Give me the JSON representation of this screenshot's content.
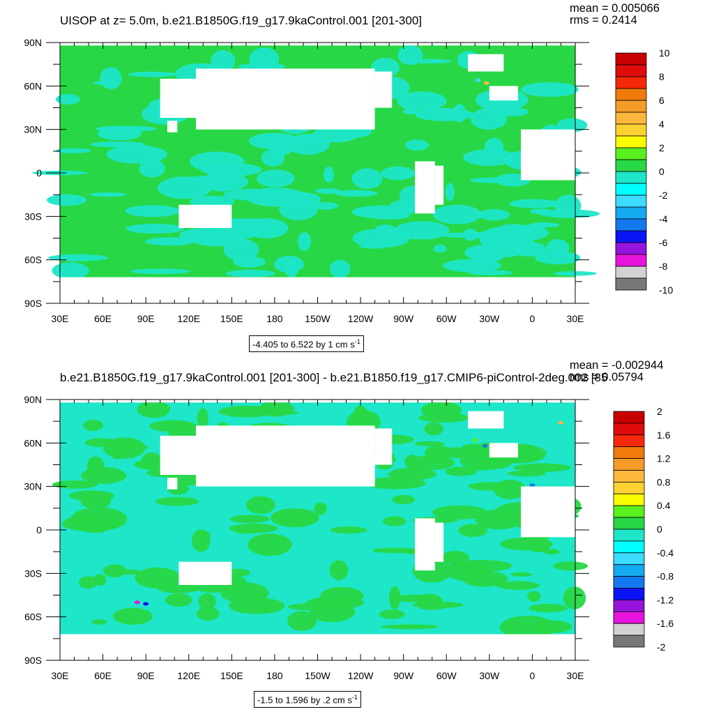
{
  "colors": {
    "land_mask": "#ffffff",
    "frame": "#000000"
  },
  "chart_data": [
    {
      "type": "heatmap",
      "title": "UISOP at z=   5.0m, b.e21.B1850G.f19_g17.9kaControl.001 [201-300]",
      "stats": {
        "mean_label": "mean = 0.005066",
        "rms_label": "rms = 0.2414"
      },
      "x_tick_labels": [
        "30E",
        "60E",
        "90E",
        "120E",
        "150E",
        "180",
        "150W",
        "120W",
        "90W",
        "60W",
        "30W",
        "0",
        "30E"
      ],
      "y_tick_labels": [
        "90N",
        "60N",
        "30N",
        "0",
        "30S",
        "60S",
        "90S"
      ],
      "colorbar": {
        "levels": [
          "10",
          "8",
          "6",
          "4",
          "2",
          "0",
          "-2",
          "-4",
          "-6",
          "-8",
          "-10"
        ],
        "colors": [
          "#c80000",
          "#e00c0c",
          "#f5280a",
          "#f07a0a",
          "#f59b28",
          "#fbb83c",
          "#fbd232",
          "#fafa00",
          "#5af01e",
          "#28d746",
          "#1ee6c8",
          "#00ffff",
          "#3cdcff",
          "#14aaf0",
          "#1478f0",
          "#0a14f5",
          "#9614dc",
          "#e614dc",
          "#d2d2d2",
          "#787878"
        ]
      },
      "footer": {
        "range_text": "-4.405 to 6.522 by 1 cm s",
        "unit_exponent": "-1"
      },
      "xlim": [
        30,
        390
      ],
      "ylim": [
        -90,
        90
      ],
      "field_colors": {
        "dominant": "#28d746",
        "secondary": "#1ee6c8"
      }
    },
    {
      "type": "heatmap",
      "title": "b.e21.B1850G.f19_g17.9kaControl.001 [201-300] - b.e21.B1850.f19_g17.CMIP6-piControl-2deg.002 [85",
      "stats": {
        "mean_label": "mean = -0.002944",
        "rms_label": "rms = 0.05794"
      },
      "x_tick_labels": [
        "30E",
        "60E",
        "90E",
        "120E",
        "150E",
        "180",
        "150W",
        "120W",
        "90W",
        "60W",
        "30W",
        "0",
        "30E"
      ],
      "y_tick_labels": [
        "90N",
        "60N",
        "30N",
        "0",
        "30S",
        "60S",
        "90S"
      ],
      "colorbar": {
        "levels": [
          "2",
          "1.6",
          "1.2",
          "0.8",
          "0.4",
          "0",
          "-0.4",
          "-0.8",
          "-1.2",
          "-1.6",
          "-2"
        ],
        "colors": [
          "#c80000",
          "#e00c0c",
          "#f5280a",
          "#f07a0a",
          "#f59b28",
          "#fbb83c",
          "#fbd232",
          "#fafa00",
          "#5af01e",
          "#28d746",
          "#1ee6c8",
          "#00ffff",
          "#3cdcff",
          "#14aaf0",
          "#1478f0",
          "#0a14f5",
          "#9614dc",
          "#e614dc",
          "#d2d2d2",
          "#787878"
        ]
      },
      "footer": {
        "range_text": "-1.5 to 1.596 by .2 cm s",
        "unit_exponent": "-1"
      },
      "xlim": [
        30,
        390
      ],
      "ylim": [
        -90,
        90
      ],
      "field_colors": {
        "dominant": "#1ee6c8",
        "secondary": "#28d746"
      }
    }
  ]
}
